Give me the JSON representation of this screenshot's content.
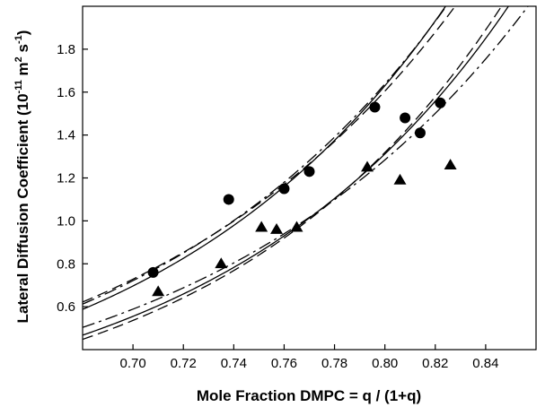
{
  "chart_data": {
    "type": "scatter",
    "title": "",
    "xlabel": "Mole Fraction DMPC = q / (1+q)",
    "ylabel_parts": {
      "main": "Lateral Diffusion Coefficient (10",
      "exp1": "-11",
      "mid": " m",
      "exp2": "2",
      "mid2": " s",
      "exp3": "-1",
      "end": ")"
    },
    "xlim": [
      0.68,
      0.86
    ],
    "ylim": [
      0.4,
      2.0
    ],
    "xticks": [
      "0.70",
      "0.72",
      "0.74",
      "0.76",
      "0.78",
      "0.80",
      "0.82",
      "0.84"
    ],
    "yticks": [
      "0.6",
      "0.8",
      "1.0",
      "1.2",
      "1.4",
      "1.6",
      "1.8"
    ],
    "grid": false,
    "legend": "none",
    "series": [
      {
        "marker": "circle",
        "points": [
          {
            "x": 0.708,
            "y": 0.76
          },
          {
            "x": 0.738,
            "y": 1.1
          },
          {
            "x": 0.76,
            "y": 1.15
          },
          {
            "x": 0.77,
            "y": 1.23
          },
          {
            "x": 0.796,
            "y": 1.53
          },
          {
            "x": 0.808,
            "y": 1.48
          },
          {
            "x": 0.814,
            "y": 1.41
          },
          {
            "x": 0.822,
            "y": 1.55
          }
        ]
      },
      {
        "marker": "triangle",
        "points": [
          {
            "x": 0.71,
            "y": 0.67
          },
          {
            "x": 0.735,
            "y": 0.8
          },
          {
            "x": 0.751,
            "y": 0.97
          },
          {
            "x": 0.757,
            "y": 0.96
          },
          {
            "x": 0.765,
            "y": 0.97
          },
          {
            "x": 0.793,
            "y": 1.25
          },
          {
            "x": 0.806,
            "y": 1.19
          },
          {
            "x": 0.826,
            "y": 1.26
          }
        ]
      }
    ],
    "fit_curves": [
      {
        "group": "circle",
        "style": "solid",
        "a": 1.16,
        "b": 8.5
      },
      {
        "group": "circle",
        "style": "long-dash",
        "a": 1.17,
        "b": 7.9
      },
      {
        "group": "circle",
        "style": "dash-dot",
        "a": 1.18,
        "b": 8.2
      },
      {
        "group": "triangle",
        "style": "solid",
        "a": 0.93,
        "b": 8.6
      },
      {
        "group": "triangle",
        "style": "long-dash",
        "a": 0.92,
        "b": 9.0
      },
      {
        "group": "triangle",
        "style": "dash-dot",
        "a": 0.94,
        "b": 7.8
      }
    ]
  }
}
